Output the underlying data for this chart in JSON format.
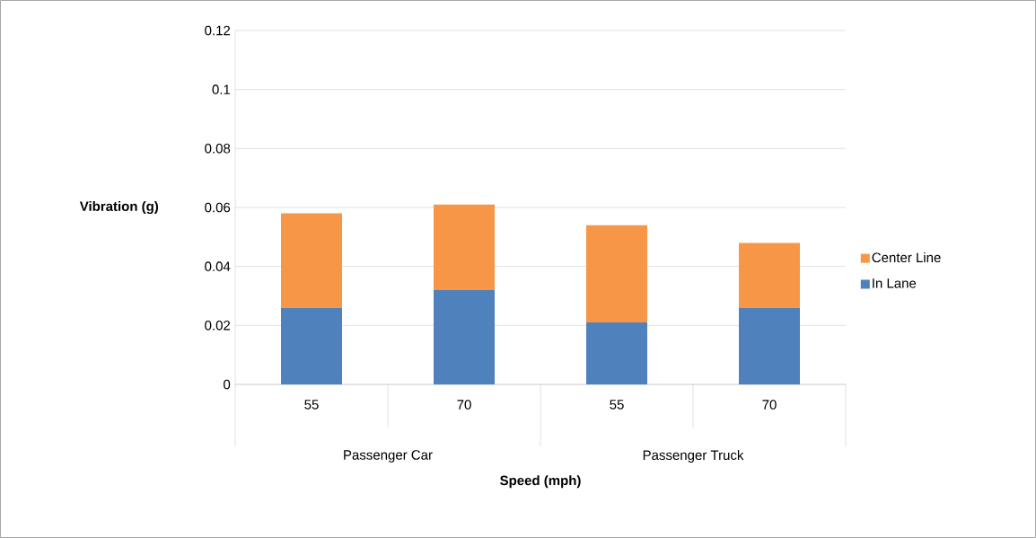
{
  "chart_data": {
    "type": "bar",
    "stacked": true,
    "xlabel": "Speed (mph)",
    "ylabel": "Vibration (g)",
    "categories": [
      "55",
      "70",
      "55",
      "70"
    ],
    "annotations": [
      "Passenger Car",
      "Passenger Truck"
    ],
    "series": [
      {
        "name": "In Lane",
        "color": "#4f81bd",
        "values": [
          0.026,
          0.032,
          0.021,
          0.026
        ]
      },
      {
        "name": "Center Line",
        "color": "#f79646",
        "values": [
          0.032,
          0.029,
          0.033,
          0.022
        ]
      }
    ],
    "ylim": [
      0,
      0.12
    ],
    "yticks": [
      0,
      0.02,
      0.04,
      0.06,
      0.08,
      0.1,
      0.12
    ],
    "grid": "y",
    "legend": "right"
  }
}
